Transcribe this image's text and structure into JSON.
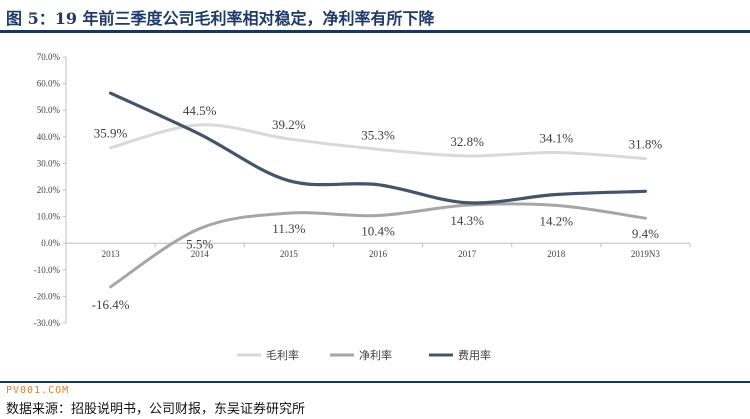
{
  "title": "图 5：19 年前三季度公司毛利率相对稳定，净利率有所下降",
  "source": "数据来源：招股说明书，公司财报，东吴证券研究所",
  "watermark": "PV001.COM",
  "chart_data": {
    "type": "line",
    "categories": [
      "2013",
      "2014",
      "2015",
      "2016",
      "2017",
      "2018",
      "2019N3"
    ],
    "ylim": [
      -30,
      70
    ],
    "yticks": [
      "70.0%",
      "60.0%",
      "50.0%",
      "40.0%",
      "30.0%",
      "20.0%",
      "10.0%",
      "0.0%",
      "-10.0%",
      "-20.0%",
      "-30.0%"
    ],
    "series": [
      {
        "name": "毛利率",
        "color": "#d9d9d9",
        "values": [
          35.9,
          44.5,
          39.2,
          35.3,
          32.8,
          34.1,
          31.8
        ],
        "labels": [
          "35.9%",
          "44.5%",
          "39.2%",
          "35.3%",
          "32.8%",
          "34.1%",
          "31.8%"
        ]
      },
      {
        "name": "净利率",
        "color": "#a6a6a6",
        "values": [
          -16.4,
          5.5,
          11.3,
          10.4,
          14.3,
          14.2,
          9.4
        ],
        "labels": [
          "-16.4%",
          "5.5%",
          "11.3%",
          "10.4%",
          "14.3%",
          "14.2%",
          "9.4%"
        ]
      },
      {
        "name": "费用率",
        "color": "#44546a",
        "values": [
          56.4,
          41.0,
          23.5,
          22.0,
          15.2,
          18.3,
          19.5
        ]
      }
    ],
    "legend_position": "bottom",
    "grid": false
  }
}
